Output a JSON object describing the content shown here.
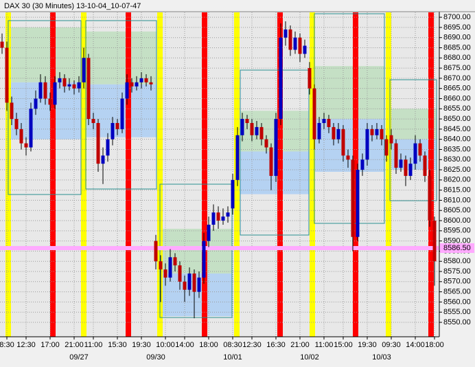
{
  "chart_data": {
    "type": "candlestick",
    "title": "DAX 30 (30 Minutes) 13-10-04_10-07-47",
    "categories": [
      null,
      "8:30",
      null,
      null,
      null,
      "12:30",
      null,
      null,
      null,
      null,
      "17:00",
      null,
      null,
      null,
      null,
      "21:00",
      null,
      null,
      null,
      "11:00",
      null,
      null,
      null,
      null,
      "15:30",
      null,
      null,
      null,
      null,
      "19:30",
      null,
      null,
      null,
      null,
      "10:00",
      null,
      null,
      null,
      "14:00",
      null,
      null,
      null,
      null,
      "18:00",
      null,
      null,
      null,
      null,
      "08:30",
      null,
      null,
      null,
      "12:30",
      null,
      null,
      null,
      null,
      "16:30",
      null,
      null,
      null,
      null,
      "21:00",
      null,
      null,
      null,
      null,
      "11:00",
      null,
      null,
      null,
      "15:00",
      null,
      null,
      null,
      null,
      "19:30",
      null,
      null,
      null,
      null,
      "09:30",
      null,
      null,
      null,
      null,
      "14:00",
      null,
      null,
      null,
      "18:00"
    ],
    "dates": [
      null,
      null,
      null,
      null,
      null,
      null,
      null,
      null,
      null,
      null,
      null,
      null,
      null,
      null,
      null,
      null,
      "09/27",
      null,
      null,
      null,
      null,
      null,
      null,
      null,
      null,
      null,
      null,
      null,
      null,
      null,
      null,
      null,
      "09/30",
      null,
      null,
      null,
      null,
      null,
      null,
      null,
      null,
      null,
      null,
      null,
      null,
      null,
      null,
      null,
      "10/01",
      null,
      null,
      null,
      null,
      null,
      null,
      null,
      null,
      null,
      null,
      null,
      null,
      null,
      null,
      null,
      "10/02",
      null,
      null,
      null,
      null,
      null,
      null,
      null,
      null,
      null,
      null,
      null,
      null,
      null,
      null,
      "10/03",
      null,
      null,
      null,
      null,
      null,
      null,
      null,
      null,
      null,
      null,
      null
    ],
    "open": [
      8688,
      8685,
      8658,
      8650,
      8645,
      8638,
      8636,
      8655,
      8660,
      8668,
      8660,
      8657,
      8668,
      8670,
      8666,
      8667,
      8665,
      8668,
      8680,
      8650,
      8648,
      8628,
      8632,
      8640,
      8648,
      8645,
      8660,
      8668,
      8666,
      8668,
      8670,
      8668,
      8590,
      8580,
      8576,
      8572,
      8582,
      8578,
      8570,
      8566,
      8574,
      8565,
      8572,
      8590,
      8598,
      8604,
      8600,
      8602,
      8606,
      8620,
      8642,
      8650,
      8648,
      8642,
      8646,
      8640,
      8636,
      8622,
      8650,
      8690,
      8694,
      8684,
      8690,
      8682,
      8675,
      8665,
      8640,
      8648,
      8650,
      8646,
      8640,
      8645,
      8632,
      8630,
      8592,
      8625,
      8630,
      8645,
      8642,
      8645,
      8640,
      8642,
      8638,
      8626,
      8630,
      8622,
      8628,
      8638,
      8632,
      8622,
      8600
    ],
    "high": [
      8692,
      8688,
      8661,
      8653,
      8648,
      8641,
      8658,
      8664,
      8672,
      8671,
      8663,
      8671,
      8673,
      8672,
      8670,
      8669,
      8671,
      8685,
      8682,
      8653,
      8650,
      8636,
      8643,
      8651,
      8650,
      8663,
      8672,
      8670,
      8671,
      8673,
      8672,
      8671,
      8593,
      8583,
      8579,
      8586,
      8584,
      8580,
      8573,
      8577,
      8576,
      8575,
      8594,
      8602,
      8608,
      8607,
      8606,
      8607,
      8623,
      8646,
      8653,
      8652,
      8650,
      8649,
      8648,
      8642,
      8638,
      8653,
      8697,
      8698,
      8696,
      8693,
      8692,
      8689,
      8678,
      8667,
      8651,
      8653,
      8652,
      8648,
      8648,
      8647,
      8635,
      8632,
      8628,
      8633,
      8648,
      8647,
      8648,
      8647,
      8642,
      8645,
      8640,
      8633,
      8632,
      8631,
      8642,
      8640,
      8634,
      8625,
      8602
    ],
    "low": [
      8682,
      8654,
      8647,
      8642,
      8635,
      8632,
      8634,
      8652,
      8658,
      8657,
      8654,
      8655,
      8665,
      8663,
      8664,
      8662,
      8663,
      8665,
      8647,
      8645,
      8624,
      8618,
      8629,
      8637,
      8642,
      8643,
      8657,
      8663,
      8664,
      8665,
      8666,
      8664,
      8576,
      8560,
      8568,
      8570,
      8575,
      8566,
      8560,
      8563,
      8552,
      8562,
      8569,
      8587,
      8595,
      8596,
      8598,
      8599,
      8603,
      8617,
      8639,
      8645,
      8639,
      8640,
      8637,
      8633,
      8615,
      8619,
      8647,
      8686,
      8681,
      8682,
      8678,
      8680,
      8662,
      8635,
      8638,
      8645,
      8643,
      8637,
      8638,
      8629,
      8626,
      8585,
      8590,
      8622,
      8627,
      8639,
      8640,
      8637,
      8629,
      8635,
      8623,
      8624,
      8617,
      8620,
      8625,
      8629,
      8619,
      8597,
      8568
    ],
    "close": [
      8685,
      8658,
      8650,
      8645,
      8638,
      8636,
      8655,
      8660,
      8668,
      8660,
      8657,
      8668,
      8670,
      8666,
      8667,
      8665,
      8668,
      8680,
      8650,
      8648,
      8628,
      8632,
      8640,
      8648,
      8645,
      8660,
      8668,
      8666,
      8668,
      8670,
      8668,
      8667,
      8580,
      8576,
      8572,
      8582,
      8578,
      8570,
      8566,
      8574,
      8565,
      8572,
      8590,
      8598,
      8604,
      8600,
      8602,
      8604,
      8620,
      8642,
      8650,
      8648,
      8642,
      8646,
      8640,
      8636,
      8622,
      8650,
      8690,
      8694,
      8684,
      8690,
      8682,
      8686,
      8665,
      8640,
      8648,
      8650,
      8646,
      8640,
      8645,
      8632,
      8630,
      8592,
      8625,
      8630,
      8645,
      8642,
      8645,
      8640,
      8632,
      8638,
      8626,
      8630,
      8622,
      8628,
      8638,
      8632,
      8622,
      8600,
      8580
    ],
    "up_color": "#0000c0",
    "down_color": "#c00000",
    "value_areas": [
      {
        "high": 8695,
        "poc": 8668,
        "low": 8640
      },
      {
        "high": 8693,
        "poc": 8667,
        "low": 8641
      },
      {
        "high": 8596,
        "poc": 8574,
        "low": 8553
      },
      {
        "high": 8654,
        "poc": 8634,
        "low": 8613
      },
      {
        "high": 8676,
        "poc": 8650,
        "low": 8624
      },
      {
        "high": 8655,
        "poc": 8640,
        "low": 8625
      }
    ],
    "upper_color": "#c5e0c5",
    "lower_color": "#b5d2f2",
    "hline": {
      "value": 8586.5,
      "label": "8586.50",
      "color": "#ffaaff"
    },
    "ylim": [
      8542.9,
      8702.4
    ],
    "yticks": [
      {
        "value": 8550,
        "label": "8550.00"
      },
      {
        "value": 8555,
        "label": "8555.00"
      },
      {
        "value": 8560,
        "label": "8560.00"
      },
      {
        "value": 8565,
        "label": "8565.00"
      },
      {
        "value": 8570,
        "label": "8570.00"
      },
      {
        "value": 8575,
        "label": "8575.00"
      },
      {
        "value": 8580,
        "label": "8580.00"
      },
      {
        "value": 8585,
        "label": "8585.00"
      },
      {
        "value": 8590,
        "label": "8590.00"
      },
      {
        "value": 8595,
        "label": "8595.00"
      },
      {
        "value": 8600,
        "label": "8600.00"
      },
      {
        "value": 8605,
        "label": "8605.00"
      },
      {
        "value": 8610,
        "label": "8610.00"
      },
      {
        "value": 8615,
        "label": "8615.00"
      },
      {
        "value": 8620,
        "label": "8620.00"
      },
      {
        "value": 8625,
        "label": "8625.00"
      },
      {
        "value": 8630,
        "label": "8630.00"
      },
      {
        "value": 8635,
        "label": "8635.00"
      },
      {
        "value": 8640,
        "label": "8640.00"
      },
      {
        "value": 8645,
        "label": "8645.00"
      },
      {
        "value": 8650,
        "label": "8650.00"
      },
      {
        "value": 8655,
        "label": "8655.00"
      },
      {
        "value": 8660,
        "label": "8660.00"
      },
      {
        "value": 8665,
        "label": "8665.00"
      },
      {
        "value": 8670,
        "label": "8670.00"
      },
      {
        "value": 8675,
        "label": "8675.00"
      },
      {
        "value": 8680,
        "label": "8680.00"
      },
      {
        "value": 8685,
        "label": "8685.00"
      },
      {
        "value": 8690,
        "label": "8690.00"
      },
      {
        "value": 8695,
        "label": "8695.00"
      },
      {
        "value": 8700,
        "label": "8700.00"
      }
    ],
    "grid": true
  }
}
